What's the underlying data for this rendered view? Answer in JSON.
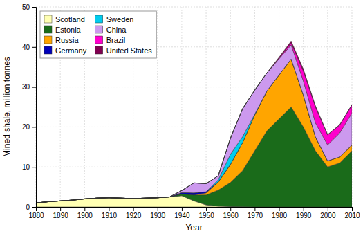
{
  "chart_data": {
    "type": "area",
    "stacked": true,
    "xlabel": "Year",
    "ylabel": "Mined shale, million tonnes",
    "x": [
      1880,
      1885,
      1890,
      1895,
      1900,
      1905,
      1910,
      1915,
      1920,
      1925,
      1930,
      1935,
      1940,
      1945,
      1950,
      1955,
      1960,
      1965,
      1970,
      1975,
      1980,
      1985,
      1990,
      1995,
      2000,
      2005,
      2010
    ],
    "xlim": [
      1880,
      2010
    ],
    "ylim": [
      0,
      50
    ],
    "xticks": [
      1880,
      1890,
      1900,
      1910,
      1920,
      1930,
      1940,
      1950,
      1960,
      1970,
      1980,
      1990,
      2000,
      2010
    ],
    "yticks": [
      0,
      10,
      20,
      30,
      40,
      50
    ],
    "grid": true,
    "legend": "top-left",
    "series": [
      {
        "name": "Scotland",
        "color": "#ffffb3",
        "values": [
          1.0,
          1.3,
          1.5,
          1.7,
          2.0,
          2.2,
          2.3,
          2.2,
          2.1,
          2.2,
          2.3,
          2.5,
          2.8,
          1.5,
          0.5,
          0.2,
          0.1,
          0.05,
          0.0,
          0.0,
          0.0,
          0.0,
          0.0,
          0.0,
          0.0,
          0.0,
          0.0
        ]
      },
      {
        "name": "Estonia",
        "color": "#1a6b1a",
        "values": [
          0.0,
          0.0,
          0.0,
          0.0,
          0.0,
          0.0,
          0.0,
          0.0,
          0.0,
          0.0,
          0.0,
          0.0,
          0.5,
          1.5,
          2.5,
          4.0,
          6.0,
          9.0,
          14.0,
          19.0,
          22.0,
          25.0,
          20.0,
          14.0,
          10.0,
          11.0,
          14.0
        ]
      },
      {
        "name": "Russia",
        "color": "#ffa500",
        "values": [
          0.0,
          0.0,
          0.0,
          0.0,
          0.0,
          0.0,
          0.0,
          0.0,
          0.0,
          0.0,
          0.0,
          0.0,
          0.0,
          0.0,
          0.5,
          2.0,
          4.5,
          7.0,
          9.0,
          10.0,
          11.0,
          12.0,
          8.0,
          3.5,
          1.5,
          1.5,
          1.5
        ]
      },
      {
        "name": "Germany",
        "color": "#0000bb",
        "values": [
          0.0,
          0.0,
          0.0,
          0.0,
          0.0,
          0.0,
          0.0,
          0.0,
          0.0,
          0.0,
          0.0,
          0.0,
          0.3,
          0.5,
          0.3,
          0.1,
          0.05,
          0.0,
          0.0,
          0.0,
          0.0,
          0.0,
          0.0,
          0.0,
          0.0,
          0.0,
          0.0
        ]
      },
      {
        "name": "Sweden",
        "color": "#00ccee",
        "values": [
          0.0,
          0.0,
          0.0,
          0.0,
          0.0,
          0.0,
          0.0,
          0.0,
          0.0,
          0.0,
          0.0,
          0.0,
          0.0,
          0.0,
          0.0,
          0.5,
          2.5,
          1.5,
          0.2,
          0.0,
          0.0,
          0.0,
          0.0,
          0.0,
          0.0,
          0.0,
          0.0
        ]
      },
      {
        "name": "China",
        "color": "#cc99ee",
        "values": [
          0.0,
          0.0,
          0.0,
          0.0,
          0.0,
          0.0,
          0.0,
          0.0,
          0.0,
          0.0,
          0.0,
          0.0,
          0.5,
          2.5,
          2.0,
          1.0,
          4.0,
          7.0,
          6.0,
          4.5,
          4.0,
          3.5,
          3.5,
          3.5,
          4.0,
          6.0,
          8.0
        ]
      },
      {
        "name": "Brazil",
        "color": "#ff00cc",
        "values": [
          0.0,
          0.0,
          0.0,
          0.0,
          0.0,
          0.0,
          0.0,
          0.0,
          0.0,
          0.0,
          0.0,
          0.0,
          0.0,
          0.0,
          0.0,
          0.0,
          0.0,
          0.0,
          0.0,
          0.0,
          0.2,
          0.5,
          2.5,
          4.0,
          2.5,
          2.0,
          2.0
        ]
      },
      {
        "name": "United States",
        "color": "#800050",
        "values": [
          0.0,
          0.0,
          0.0,
          0.0,
          0.0,
          0.0,
          0.0,
          0.0,
          0.0,
          0.0,
          0.0,
          0.0,
          0.0,
          0.0,
          0.0,
          0.0,
          0.0,
          0.0,
          0.0,
          0.0,
          0.2,
          0.5,
          0.5,
          0.3,
          0.1,
          0.1,
          0.1
        ]
      }
    ]
  }
}
